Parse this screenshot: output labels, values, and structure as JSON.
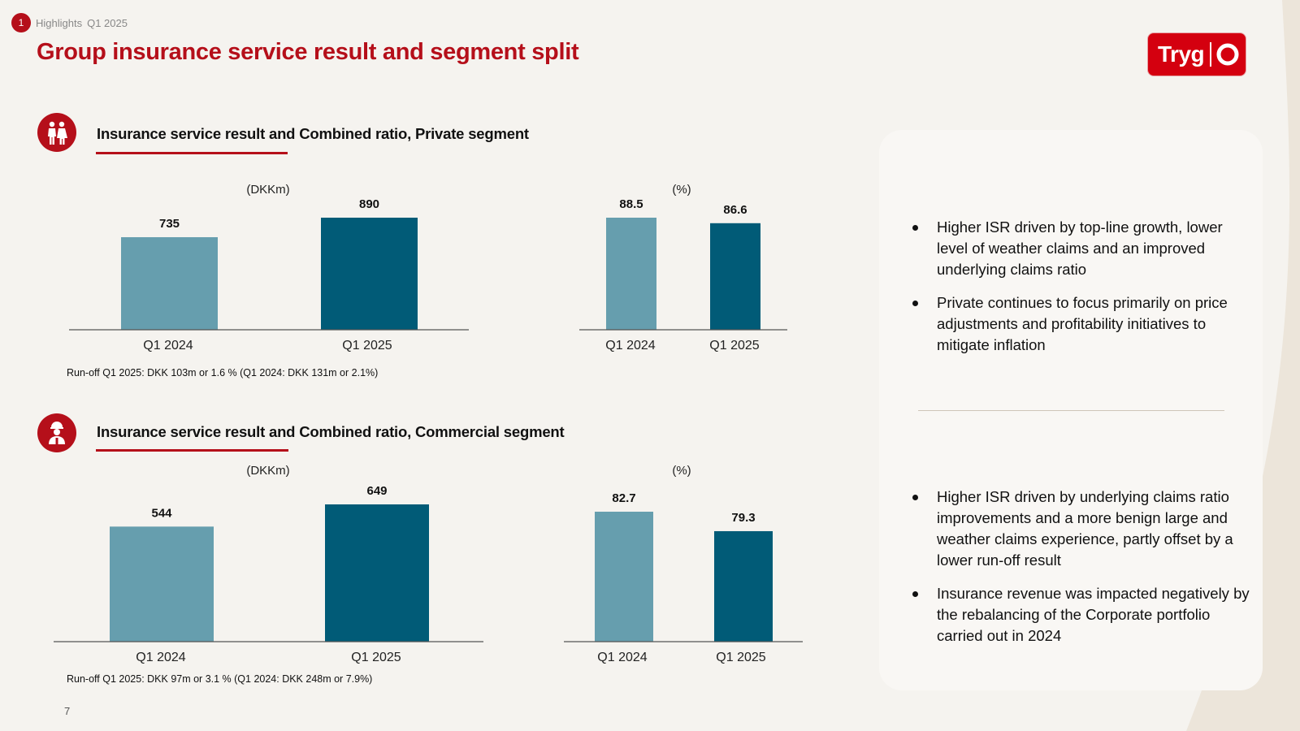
{
  "header": {
    "section_number": "1",
    "breadcrumb_section": "Highlights",
    "breadcrumb_period": "Q1 2025",
    "title": "Group insurance service result and segment split",
    "logo_text": "Tryg",
    "brand_color": "#b50f1a"
  },
  "private": {
    "icon": "family-icon",
    "title": "Insurance service result and Combined ratio, Private segment",
    "runoff": "Run-off Q1 2025: DKK 103m or 1.6 % (Q1 2024: DKK 131m or 2.1%)"
  },
  "commercial": {
    "icon": "worker-icon",
    "title": "Insurance service result and Combined ratio, Commercial segment",
    "runoff": "Run-off Q1 2025: DKK 97m or 3.1 % (Q1 2024: DKK 248m or 7.9%)"
  },
  "chart_data": [
    {
      "id": "private-isr",
      "type": "bar",
      "unit_label": "(DKKm)",
      "categories": [
        "Q1 2024",
        "Q1 2025"
      ],
      "values": [
        735,
        890
      ],
      "data_labels": [
        "735",
        "890"
      ],
      "colors": [
        "#669eae",
        "#015b77"
      ]
    },
    {
      "id": "private-cr",
      "type": "bar",
      "unit_label": "(%)",
      "categories": [
        "Q1 2024",
        "Q1 2025"
      ],
      "values": [
        88.5,
        86.6
      ],
      "data_labels": [
        "88.5",
        "86.6"
      ],
      "colors": [
        "#669eae",
        "#015b77"
      ]
    },
    {
      "id": "commercial-isr",
      "type": "bar",
      "unit_label": "(DKKm)",
      "categories": [
        "Q1 2024",
        "Q1 2025"
      ],
      "values": [
        544,
        649
      ],
      "data_labels": [
        "544",
        "649"
      ],
      "colors": [
        "#669eae",
        "#015b77"
      ]
    },
    {
      "id": "commercial-cr",
      "type": "bar",
      "unit_label": "(%)",
      "categories": [
        "Q1 2024",
        "Q1 2025"
      ],
      "values": [
        82.7,
        79.3
      ],
      "data_labels": [
        "82.7",
        "79.3"
      ],
      "colors": [
        "#669eae",
        "#015b77"
      ]
    }
  ],
  "commentary": {
    "private_bullets": [
      "Higher ISR driven by top-line growth, lower level of weather claims and an improved underlying claims ratio",
      "Private continues to focus primarily on price adjustments and profitability initiatives to mitigate inflation"
    ],
    "commercial_bullets": [
      "Higher ISR driven by underlying claims ratio improvements and a more benign large and weather claims experience, partly offset by a lower run-off result",
      "Insurance revenue was impacted negatively by the rebalancing of the Corporate portfolio carried out in 2024"
    ]
  },
  "footer": {
    "page_number": "7"
  }
}
